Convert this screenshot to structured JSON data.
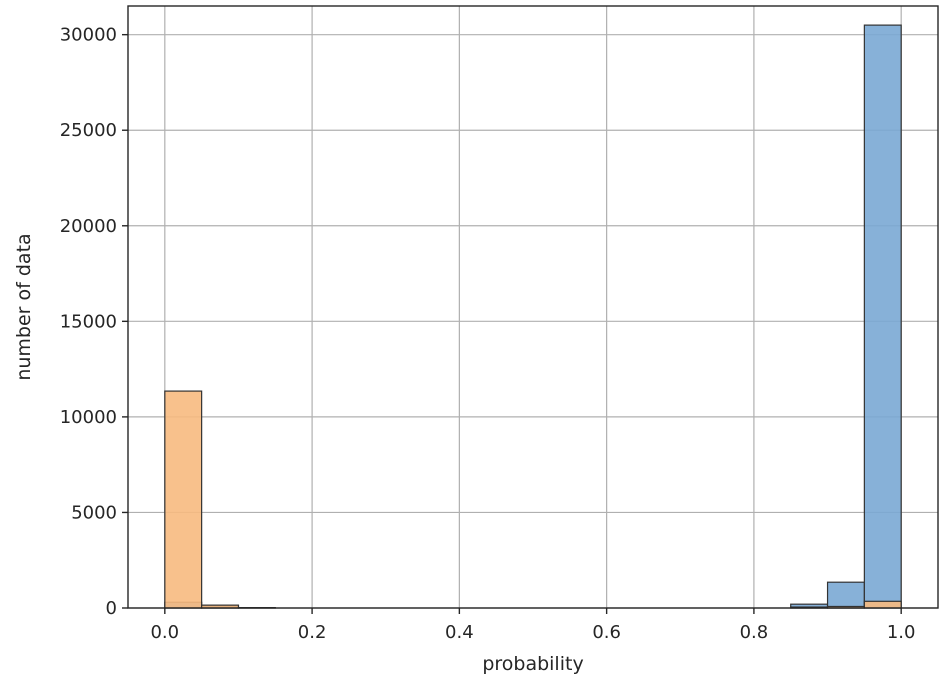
{
  "chart_data": {
    "type": "bar",
    "title": "",
    "xlabel": "probability",
    "ylabel": "number of data",
    "xlim": [
      -0.05,
      1.05
    ],
    "ylim": [
      0,
      31500
    ],
    "xticks": [
      0.0,
      0.2,
      0.4,
      0.6,
      0.8,
      1.0
    ],
    "xtick_labels": [
      "0.0",
      "0.2",
      "0.4",
      "0.6",
      "0.8",
      "1.0"
    ],
    "yticks": [
      0,
      5000,
      10000,
      15000,
      20000,
      25000,
      30000
    ],
    "ytick_labels": [
      "0",
      "5000",
      "10000",
      "15000",
      "20000",
      "25000",
      "30000"
    ],
    "grid": true,
    "bin_edges": [
      0.0,
      0.05,
      0.1,
      0.15,
      0.2,
      0.25,
      0.3,
      0.35,
      0.4,
      0.45,
      0.5,
      0.55,
      0.6,
      0.65,
      0.7,
      0.75,
      0.8,
      0.85,
      0.9,
      0.95,
      1.0
    ],
    "series": [
      {
        "color": "#7aa9d4",
        "values": [
          300,
          100,
          10,
          0,
          0,
          0,
          0,
          0,
          0,
          0,
          0,
          0,
          0,
          0,
          0,
          0,
          0,
          200,
          1350,
          30500
        ]
      },
      {
        "color": "#f7ba80",
        "values": [
          11350,
          150,
          20,
          0,
          0,
          0,
          0,
          0,
          0,
          0,
          0,
          0,
          0,
          0,
          0,
          0,
          0,
          50,
          80,
          350
        ]
      }
    ]
  }
}
